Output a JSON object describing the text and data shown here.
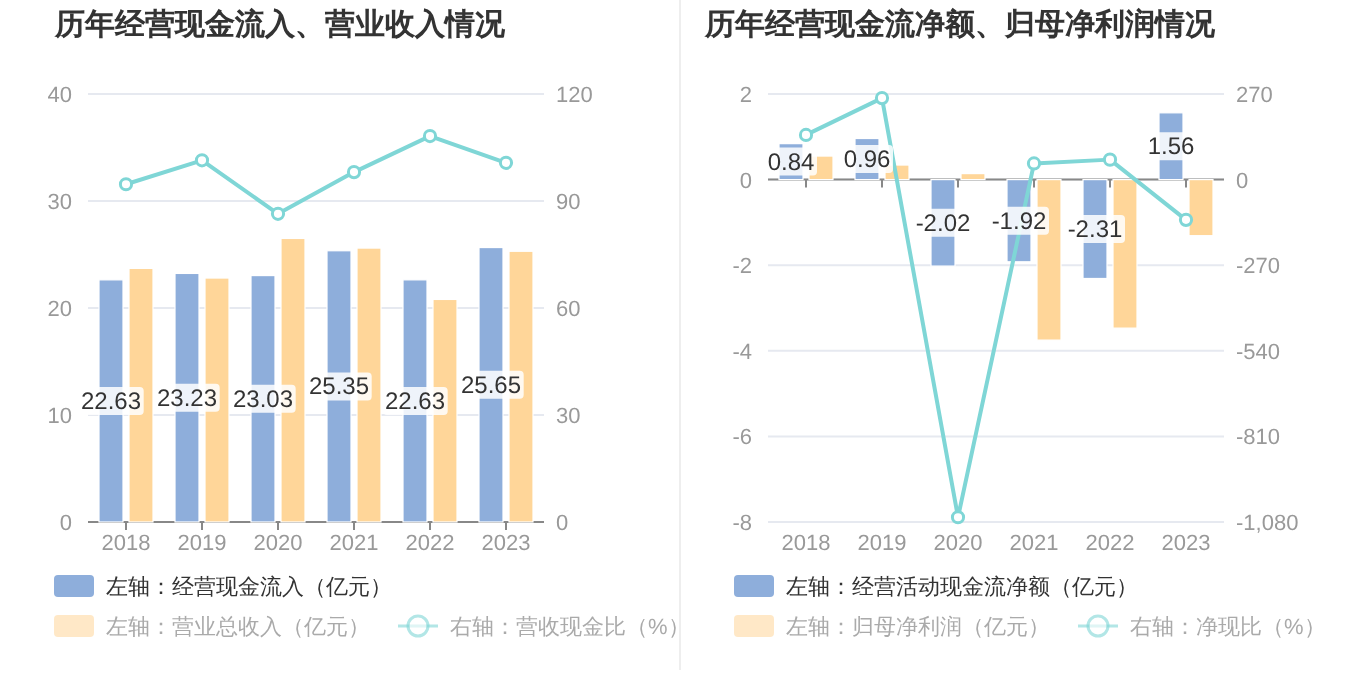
{
  "chart_data": [
    {
      "type": "bar",
      "title": "历年经营现金流入、营业收入情况",
      "categories": [
        "2018",
        "2019",
        "2020",
        "2021",
        "2022",
        "2023"
      ],
      "series": [
        {
          "name": "左轴：经营现金流入（亿元）",
          "type": "bar",
          "color": "#8eaedb",
          "values": [
            22.63,
            23.23,
            23.03,
            25.35,
            22.63,
            25.65
          ],
          "value_labels": [
            "22.63",
            "23.23",
            "23.03",
            "25.35",
            "22.63",
            "25.65"
          ]
        },
        {
          "name": "左轴：营业总收入（亿元）",
          "type": "bar",
          "color": "#ffd699",
          "values": [
            23.7,
            22.8,
            26.5,
            25.6,
            20.8,
            25.3
          ]
        },
        {
          "name": "右轴：营收现金比（%）",
          "type": "line",
          "axis": "y2",
          "color": "#7fd6d6",
          "values": [
            94.7,
            101.4,
            86.4,
            98.1,
            108.2,
            100.7
          ]
        }
      ],
      "ylim": [
        0,
        40
      ],
      "yticks": [
        0,
        10,
        20,
        30,
        40
      ],
      "y2lim": [
        0,
        120
      ],
      "y2ticks": [
        0,
        30,
        60,
        90,
        120
      ],
      "grid": "y",
      "legend": "bottom",
      "marker": "circle"
    },
    {
      "type": "bar",
      "title": "历年经营现金流净额、归母净利润情况",
      "categories": [
        "2018",
        "2019",
        "2020",
        "2021",
        "2022",
        "2023"
      ],
      "series": [
        {
          "name": "左轴：经营活动现金流净额（亿元）",
          "type": "bar",
          "color": "#8eaedb",
          "values": [
            0.84,
            0.96,
            -2.02,
            -1.92,
            -2.31,
            1.56
          ],
          "value_labels": [
            "0.84",
            "0.96",
            "-2.02",
            "-1.92",
            "-2.31",
            "1.56"
          ]
        },
        {
          "name": "左轴：归母净利润（亿元）",
          "type": "bar",
          "color": "#ffd699",
          "values": [
            0.55,
            0.34,
            0.14,
            -3.75,
            -3.47,
            -1.31
          ]
        },
        {
          "name": "右轴：净现比（%）",
          "type": "line",
          "axis": "y2",
          "color": "#7fd6d6",
          "values": [
            141,
            257,
            -1065,
            51,
            63,
            -127
          ]
        }
      ],
      "ylim": [
        -8,
        2
      ],
      "yticks": [
        -8,
        -6,
        -4,
        -2,
        0,
        2
      ],
      "y2lim": [
        -1080,
        270
      ],
      "y2ticks": [
        {
          "value": -1080,
          "label": "-1,080"
        },
        {
          "value": -810,
          "label": "-810"
        },
        {
          "value": -540,
          "label": "-540"
        },
        {
          "value": -270,
          "label": "-270"
        },
        0,
        270
      ],
      "grid": "y",
      "legend": "bottom",
      "marker": "circle"
    }
  ]
}
